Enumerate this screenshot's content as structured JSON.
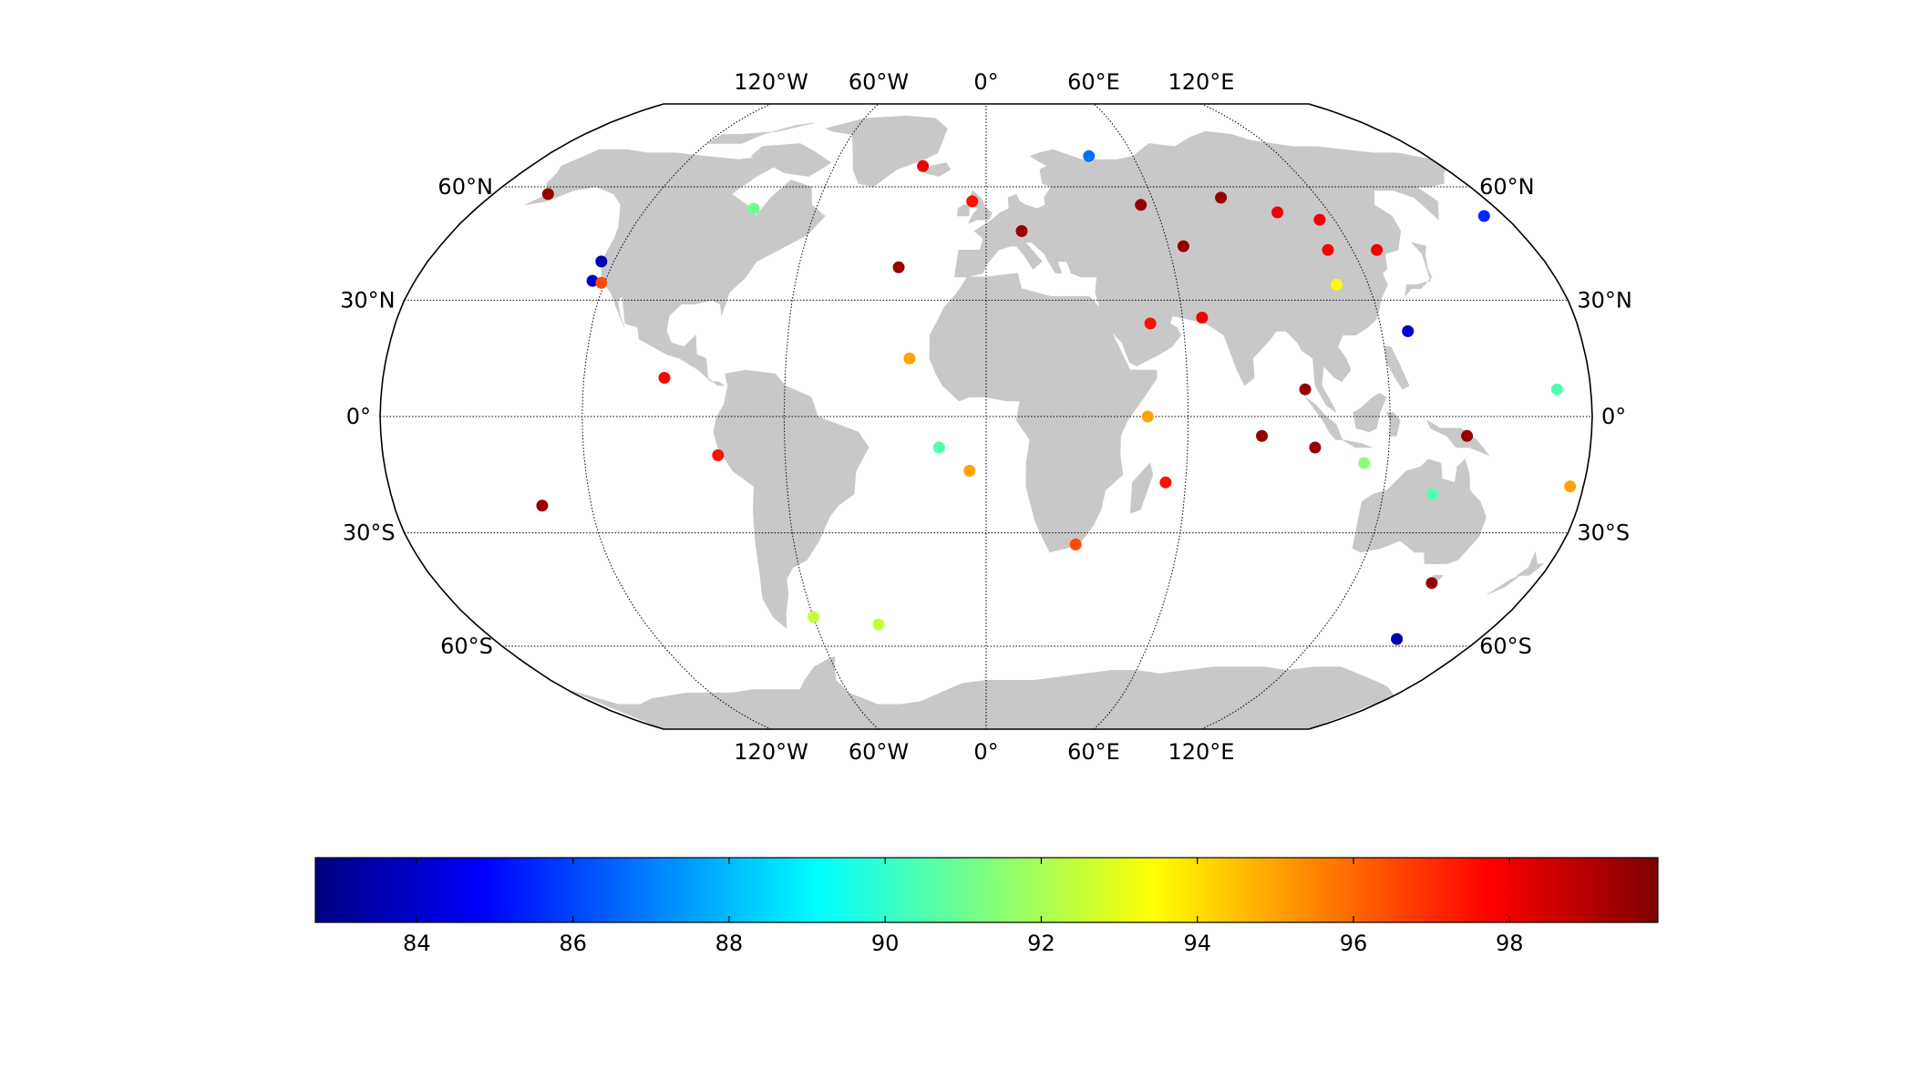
{
  "map": {
    "projection": "Robinson",
    "land_color": "#c8c8c8",
    "border_color": "#000000",
    "parallels": [
      {
        "lat": 60,
        "label": "60°N"
      },
      {
        "lat": 30,
        "label": "30°N"
      },
      {
        "lat": 0,
        "label": "0°"
      },
      {
        "lat": -30,
        "label": "30°S"
      },
      {
        "lat": -60,
        "label": "60°S"
      }
    ],
    "meridians": [
      {
        "lon": -120,
        "label": "120°W"
      },
      {
        "lon": -60,
        "label": "60°W"
      },
      {
        "lon": 0,
        "label": "0°"
      },
      {
        "lon": 60,
        "label": "60°E"
      },
      {
        "lon": 120,
        "label": "120°E"
      }
    ],
    "points": [
      {
        "lon": -160,
        "lat": 58,
        "value": 99.5
      },
      {
        "lon": -82,
        "lat": 54,
        "value": 91.0
      },
      {
        "lon": -124,
        "lat": 40,
        "value": 83.5
      },
      {
        "lon": -124,
        "lat": 35,
        "value": 84.0
      },
      {
        "lon": -121,
        "lat": 34.5,
        "value": 96.5
      },
      {
        "lon": -96,
        "lat": 10,
        "value": 97.8
      },
      {
        "lon": -80,
        "lat": -10,
        "value": 97.5
      },
      {
        "lon": -135,
        "lat": -23,
        "value": 99.5
      },
      {
        "lon": -25,
        "lat": 66,
        "value": 98.0
      },
      {
        "lon": -5,
        "lat": 56,
        "value": 97.5
      },
      {
        "lon": -28,
        "lat": 38.5,
        "value": 99.5
      },
      {
        "lon": -23,
        "lat": 15,
        "value": 95.0
      },
      {
        "lon": -14,
        "lat": -8,
        "value": 90.5
      },
      {
        "lon": -5,
        "lat": -14,
        "value": 95.0
      },
      {
        "lon": -60,
        "lat": -52,
        "value": 92.5
      },
      {
        "lon": -38,
        "lat": -54,
        "value": 92.5
      },
      {
        "lon": 12,
        "lat": 48,
        "value": 99.5
      },
      {
        "lon": 42,
        "lat": 69,
        "value": 86.8
      },
      {
        "lon": 55,
        "lat": 55,
        "value": 99.5
      },
      {
        "lon": 85,
        "lat": 57,
        "value": 99.5
      },
      {
        "lon": 102,
        "lat": 53,
        "value": 98.0
      },
      {
        "lon": 115,
        "lat": 51,
        "value": 98.0
      },
      {
        "lon": 65,
        "lat": 44,
        "value": 99.5
      },
      {
        "lon": 112,
        "lat": 43,
        "value": 97.8
      },
      {
        "lon": 110,
        "lat": 34,
        "value": 93.5
      },
      {
        "lon": 173,
        "lat": 52,
        "value": 85.5
      },
      {
        "lon": 50,
        "lat": 24,
        "value": 97.5
      },
      {
        "lon": 66,
        "lat": 25.5,
        "value": 98.0
      },
      {
        "lon": 128,
        "lat": 43,
        "value": 98.0
      },
      {
        "lon": 128,
        "lat": 22,
        "value": 84.0
      },
      {
        "lon": 48,
        "lat": 0,
        "value": 95.0
      },
      {
        "lon": 54,
        "lat": -17,
        "value": 97.5
      },
      {
        "lon": 28,
        "lat": -33,
        "value": 96.5
      },
      {
        "lon": 82,
        "lat": -5,
        "value": 99.5
      },
      {
        "lon": 95,
        "lat": 7,
        "value": 99.5
      },
      {
        "lon": 98,
        "lat": -8,
        "value": 99.5
      },
      {
        "lon": 113,
        "lat": -12,
        "value": 91.5
      },
      {
        "lon": 143,
        "lat": -5,
        "value": 99.5
      },
      {
        "lon": 170,
        "lat": 7,
        "value": 90.5
      },
      {
        "lon": 135,
        "lat": -20,
        "value": 90.5
      },
      {
        "lon": 146,
        "lat": -43,
        "value": 99.5
      },
      {
        "lon": 150,
        "lat": -58,
        "value": 83.5
      },
      {
        "lon": 176,
        "lat": -18,
        "value": 95.0
      }
    ]
  },
  "colorbar": {
    "min": 82.7,
    "max": 99.9,
    "ticks": [
      {
        "value": 84,
        "label": "84"
      },
      {
        "value": 86,
        "label": "86"
      },
      {
        "value": 88,
        "label": "88"
      },
      {
        "value": 90,
        "label": "90"
      },
      {
        "value": 92,
        "label": "92"
      },
      {
        "value": 94,
        "label": "94"
      },
      {
        "value": 96,
        "label": "96"
      },
      {
        "value": 98,
        "label": "98"
      }
    ],
    "colormap": [
      "#00007f",
      "#0000ff",
      "#007fff",
      "#00ffff",
      "#7fff7f",
      "#ffff00",
      "#ff7f00",
      "#ff0000",
      "#7f0000"
    ]
  }
}
